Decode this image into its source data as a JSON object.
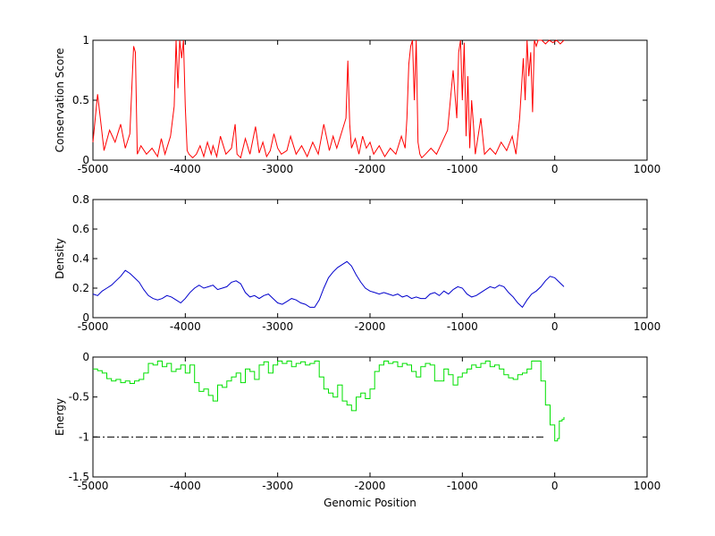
{
  "chart_data": [
    {
      "type": "line",
      "ylabel": "Conservation Score",
      "xlabel": "",
      "xlim": [
        -5000,
        1000
      ],
      "ylim": [
        0,
        1
      ],
      "xticks": [
        -5000,
        -4000,
        -3000,
        -2000,
        -1000,
        0,
        1000
      ],
      "yticks": [
        0,
        0.5,
        1
      ],
      "color": "#ff0000",
      "series": [
        {
          "x": [
            -5000,
            -4950,
            -4880,
            -4820,
            -4760,
            -4700,
            -4650,
            -4600,
            -4560,
            -4540,
            -4520,
            -4480,
            -4420,
            -4360,
            -4300,
            -4260,
            -4220,
            -4160,
            -4120,
            -4100,
            -4080,
            -4060,
            -4040,
            -4020,
            -4000,
            -3980,
            -3960,
            -3920,
            -3880,
            -3840,
            -3800,
            -3760,
            -3720,
            -3700,
            -3660,
            -3620,
            -3560,
            -3500,
            -3460,
            -3440,
            -3400,
            -3350,
            -3300,
            -3240,
            -3200,
            -3160,
            -3120,
            -3080,
            -3040,
            -3000,
            -2960,
            -2900,
            -2860,
            -2800,
            -2740,
            -2680,
            -2620,
            -2560,
            -2500,
            -2440,
            -2400,
            -2360,
            -2300,
            -2260,
            -2240,
            -2220,
            -2200,
            -2160,
            -2120,
            -2080,
            -2040,
            -2000,
            -1960,
            -1900,
            -1840,
            -1780,
            -1720,
            -1660,
            -1620,
            -1600,
            -1580,
            -1560,
            -1540,
            -1520,
            -1500,
            -1480,
            -1460,
            -1440,
            -1400,
            -1340,
            -1280,
            -1220,
            -1160,
            -1100,
            -1060,
            -1040,
            -1020,
            -1000,
            -980,
            -960,
            -940,
            -920,
            -900,
            -880,
            -860,
            -840,
            -800,
            -760,
            -700,
            -640,
            -580,
            -520,
            -460,
            -420,
            -380,
            -340,
            -320,
            -300,
            -280,
            -260,
            -240,
            -220,
            -200,
            -180,
            -140,
            -100,
            -60,
            -20,
            20,
            60,
            100
          ],
          "y": [
            0.15,
            0.55,
            0.08,
            0.25,
            0.15,
            0.3,
            0.1,
            0.22,
            0.95,
            0.9,
            0.05,
            0.12,
            0.05,
            0.1,
            0.03,
            0.18,
            0.05,
            0.2,
            0.45,
            1.0,
            0.6,
            1.0,
            0.85,
            1.0,
            0.45,
            0.08,
            0.05,
            0.02,
            0.05,
            0.12,
            0.03,
            0.15,
            0.05,
            0.12,
            0.03,
            0.2,
            0.05,
            0.1,
            0.3,
            0.05,
            0.02,
            0.18,
            0.05,
            0.28,
            0.06,
            0.15,
            0.03,
            0.08,
            0.22,
            0.1,
            0.05,
            0.08,
            0.2,
            0.05,
            0.12,
            0.03,
            0.15,
            0.05,
            0.3,
            0.08,
            0.2,
            0.1,
            0.25,
            0.35,
            0.83,
            0.3,
            0.1,
            0.18,
            0.05,
            0.2,
            0.1,
            0.15,
            0.05,
            0.12,
            0.03,
            0.1,
            0.05,
            0.2,
            0.1,
            0.35,
            0.8,
            0.95,
            1.0,
            0.5,
            1.0,
            0.15,
            0.05,
            0.02,
            0.05,
            0.1,
            0.05,
            0.15,
            0.25,
            0.75,
            0.35,
            0.9,
            1.0,
            0.5,
            0.98,
            0.2,
            0.7,
            0.1,
            0.5,
            0.3,
            0.05,
            0.15,
            0.35,
            0.05,
            0.1,
            0.05,
            0.15,
            0.08,
            0.2,
            0.05,
            0.35,
            0.85,
            0.5,
            1.0,
            0.7,
            0.9,
            0.4,
            1.0,
            0.95,
            1.0,
            1.0,
            0.97,
            1.0,
            0.98,
            1.0,
            0.97,
            1.0
          ]
        }
      ]
    },
    {
      "type": "line",
      "ylabel": "Density",
      "xlabel": "",
      "xlim": [
        -5000,
        1000
      ],
      "ylim": [
        0,
        0.8
      ],
      "xticks": [
        -5000,
        -4000,
        -3000,
        -2000,
        -1000,
        0,
        1000
      ],
      "yticks": [
        0,
        0.2,
        0.4,
        0.6,
        0.8
      ],
      "color": "#0000cc",
      "series": [
        {
          "x": [
            -5000,
            -4950,
            -4900,
            -4850,
            -4800,
            -4750,
            -4700,
            -4650,
            -4600,
            -4550,
            -4500,
            -4450,
            -4400,
            -4350,
            -4300,
            -4250,
            -4200,
            -4150,
            -4100,
            -4050,
            -4000,
            -3950,
            -3900,
            -3850,
            -3800,
            -3750,
            -3700,
            -3650,
            -3600,
            -3550,
            -3500,
            -3450,
            -3400,
            -3350,
            -3300,
            -3250,
            -3200,
            -3150,
            -3100,
            -3050,
            -3000,
            -2950,
            -2900,
            -2850,
            -2800,
            -2750,
            -2700,
            -2650,
            -2600,
            -2550,
            -2500,
            -2450,
            -2400,
            -2350,
            -2300,
            -2250,
            -2200,
            -2150,
            -2100,
            -2050,
            -2000,
            -1950,
            -1900,
            -1850,
            -1800,
            -1750,
            -1700,
            -1650,
            -1600,
            -1550,
            -1500,
            -1450,
            -1400,
            -1350,
            -1300,
            -1250,
            -1200,
            -1150,
            -1100,
            -1050,
            -1000,
            -950,
            -900,
            -850,
            -800,
            -750,
            -700,
            -650,
            -600,
            -550,
            -500,
            -450,
            -400,
            -350,
            -300,
            -250,
            -200,
            -150,
            -100,
            -50,
            0,
            50,
            100
          ],
          "y": [
            0.16,
            0.15,
            0.18,
            0.2,
            0.22,
            0.25,
            0.28,
            0.32,
            0.3,
            0.27,
            0.24,
            0.19,
            0.15,
            0.13,
            0.12,
            0.13,
            0.15,
            0.14,
            0.12,
            0.1,
            0.13,
            0.17,
            0.2,
            0.22,
            0.2,
            0.21,
            0.22,
            0.19,
            0.2,
            0.21,
            0.24,
            0.25,
            0.23,
            0.17,
            0.14,
            0.15,
            0.13,
            0.15,
            0.16,
            0.13,
            0.1,
            0.09,
            0.11,
            0.13,
            0.12,
            0.1,
            0.09,
            0.07,
            0.07,
            0.12,
            0.2,
            0.27,
            0.31,
            0.34,
            0.36,
            0.38,
            0.35,
            0.29,
            0.24,
            0.2,
            0.18,
            0.17,
            0.16,
            0.17,
            0.16,
            0.15,
            0.16,
            0.14,
            0.15,
            0.13,
            0.14,
            0.13,
            0.13,
            0.16,
            0.17,
            0.15,
            0.18,
            0.16,
            0.19,
            0.21,
            0.2,
            0.16,
            0.14,
            0.15,
            0.17,
            0.19,
            0.21,
            0.2,
            0.22,
            0.21,
            0.17,
            0.14,
            0.1,
            0.07,
            0.12,
            0.16,
            0.18,
            0.21,
            0.25,
            0.28,
            0.27,
            0.24,
            0.21
          ]
        }
      ]
    },
    {
      "type": "line",
      "ylabel": "Energy",
      "xlabel": "Genomic Position",
      "xlim": [
        -5000,
        1000
      ],
      "ylim": [
        -1.5,
        0
      ],
      "xticks": [
        -5000,
        -4000,
        -3000,
        -2000,
        -1000,
        0,
        1000
      ],
      "yticks": [
        -1.5,
        -1,
        -0.5,
        0
      ],
      "color": "#00e000",
      "reference_line": {
        "y": -1,
        "x_start": -5000,
        "x_end": -100,
        "style": "dash-dot",
        "color": "#000000"
      },
      "series": [
        {
          "x": [
            -5000,
            -4950,
            -4900,
            -4850,
            -4800,
            -4750,
            -4700,
            -4650,
            -4600,
            -4550,
            -4500,
            -4450,
            -4400,
            -4350,
            -4300,
            -4250,
            -4200,
            -4150,
            -4100,
            -4050,
            -4000,
            -3950,
            -3900,
            -3850,
            -3800,
            -3750,
            -3700,
            -3650,
            -3600,
            -3550,
            -3500,
            -3450,
            -3400,
            -3350,
            -3300,
            -3250,
            -3200,
            -3150,
            -3100,
            -3050,
            -3000,
            -2950,
            -2900,
            -2850,
            -2800,
            -2750,
            -2700,
            -2650,
            -2600,
            -2550,
            -2500,
            -2450,
            -2400,
            -2350,
            -2300,
            -2250,
            -2200,
            -2150,
            -2100,
            -2050,
            -2000,
            -1950,
            -1900,
            -1850,
            -1800,
            -1750,
            -1700,
            -1650,
            -1600,
            -1550,
            -1500,
            -1450,
            -1400,
            -1350,
            -1300,
            -1250,
            -1200,
            -1150,
            -1100,
            -1050,
            -1000,
            -950,
            -900,
            -850,
            -800,
            -750,
            -700,
            -650,
            -600,
            -550,
            -500,
            -450,
            -400,
            -350,
            -300,
            -250,
            -200,
            -150,
            -100,
            -50,
            0,
            30,
            50,
            80,
            100
          ],
          "y": [
            -0.15,
            -0.17,
            -0.2,
            -0.27,
            -0.3,
            -0.28,
            -0.32,
            -0.3,
            -0.33,
            -0.3,
            -0.28,
            -0.2,
            -0.08,
            -0.1,
            -0.05,
            -0.12,
            -0.08,
            -0.18,
            -0.15,
            -0.1,
            -0.2,
            -0.1,
            -0.32,
            -0.43,
            -0.4,
            -0.48,
            -0.55,
            -0.35,
            -0.38,
            -0.3,
            -0.25,
            -0.2,
            -0.32,
            -0.15,
            -0.18,
            -0.28,
            -0.1,
            -0.06,
            -0.2,
            -0.1,
            -0.05,
            -0.08,
            -0.05,
            -0.12,
            -0.08,
            -0.06,
            -0.1,
            -0.08,
            -0.05,
            -0.25,
            -0.4,
            -0.45,
            -0.5,
            -0.35,
            -0.55,
            -0.6,
            -0.67,
            -0.5,
            -0.45,
            -0.52,
            -0.4,
            -0.18,
            -0.1,
            -0.05,
            -0.08,
            -0.06,
            -0.12,
            -0.08,
            -0.1,
            -0.18,
            -0.25,
            -0.12,
            -0.08,
            -0.1,
            -0.3,
            -0.3,
            -0.15,
            -0.22,
            -0.35,
            -0.25,
            -0.2,
            -0.15,
            -0.1,
            -0.13,
            -0.08,
            -0.05,
            -0.12,
            -0.1,
            -0.15,
            -0.22,
            -0.26,
            -0.28,
            -0.22,
            -0.2,
            -0.15,
            -0.05,
            -0.05,
            -0.3,
            -0.6,
            -0.85,
            -1.05,
            -1.02,
            -0.8,
            -0.78,
            -0.75
          ]
        }
      ]
    }
  ]
}
